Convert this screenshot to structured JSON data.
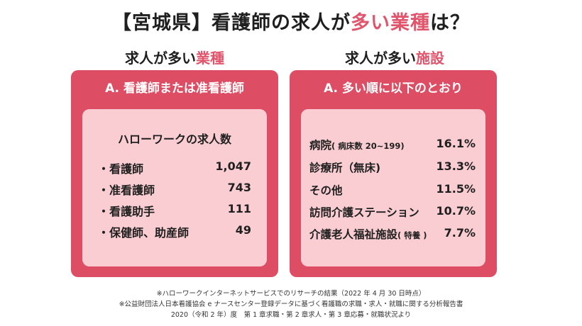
{
  "title": {
    "prefix": "【宮城県】看護師の求人が",
    "highlight": "多い業種",
    "suffix": "は？"
  },
  "left": {
    "heading_prefix": "求人が多い",
    "heading_highlight": "業種",
    "card_title": "A. 看護師または准看護師",
    "inner_title": "ハローワークの求人数",
    "rows": [
      {
        "label": "・看護師",
        "value": "1,047"
      },
      {
        "label": "・准看護師",
        "value": "743"
      },
      {
        "label": "・看護助手",
        "value": "111"
      },
      {
        "label": "・保健師、助産師",
        "value": "49"
      }
    ]
  },
  "right": {
    "heading_prefix": "求人が多い",
    "heading_highlight": "施設",
    "card_title": "A. 多い順に以下のとおり",
    "rows": [
      {
        "label": "病院",
        "note": "( 病床数 20~199)",
        "value": "16.1%"
      },
      {
        "label": "診療所（無床)",
        "note": "",
        "value": "13.3%"
      },
      {
        "label": "その他",
        "note": "",
        "value": "11.5%"
      },
      {
        "label": "訪問介護ステーション",
        "note": "",
        "value": "10.7%"
      },
      {
        "label": "介護老人福祉施設",
        "note": "( 特養 )",
        "value": "7.7%"
      }
    ]
  },
  "notes": [
    "※ハローワークインターネットサービスでのリサーチの結果（2022 年 4 月 30 日時点）",
    "※公益財団法人日本看護協会 e ナースセンター登録データに基づく看護職の求職・求人・就職に関する分析報告書",
    "2020（令和 2 年）度　第 1 章求職・第 2 章求人・第 3 章応募・就職状況より"
  ],
  "colors": {
    "accent": "#dd4d63",
    "inner": "#f9cdd2",
    "highlight_text": "#e0556b"
  }
}
